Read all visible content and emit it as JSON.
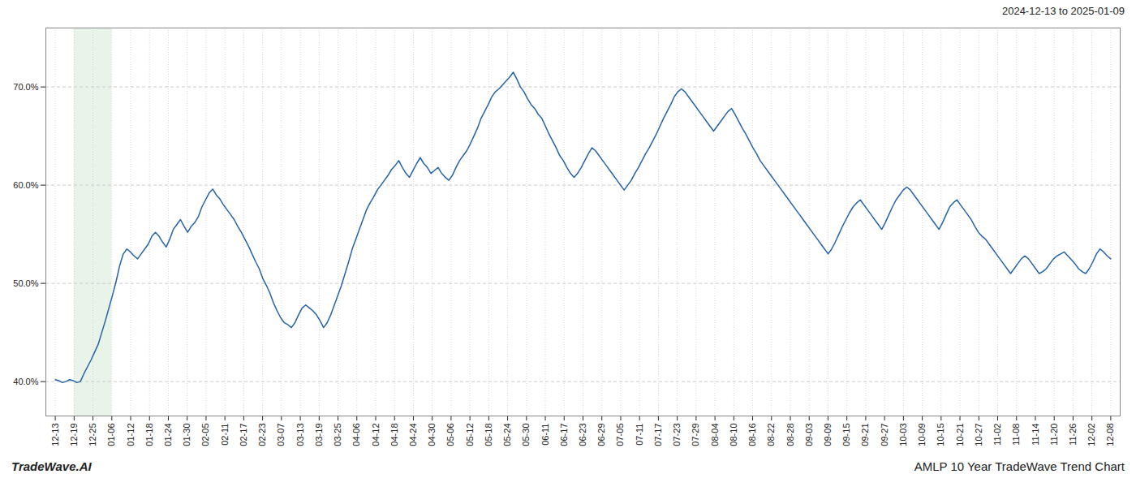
{
  "chart_data": {
    "type": "line",
    "title": "AMLP 10 Year TradeWave Trend Chart",
    "subtitle": "2024-12-13 to 2025-01-09",
    "annotations": [
      "TradeWave.AI"
    ],
    "color": "#2563a8",
    "grid": true,
    "xlim": [
      -0.5,
      56.5
    ],
    "xticks": [
      {
        "value": 0,
        "label": "12-13"
      },
      {
        "value": 1,
        "label": "12-19"
      },
      {
        "value": 2,
        "label": "12-25"
      },
      {
        "value": 3,
        "label": "01-06"
      },
      {
        "value": 4,
        "label": "01-12"
      },
      {
        "value": 5,
        "label": "01-18"
      },
      {
        "value": 6,
        "label": "01-24"
      },
      {
        "value": 7,
        "label": "01-30"
      },
      {
        "value": 8,
        "label": "02-05"
      },
      {
        "value": 9,
        "label": "02-11"
      },
      {
        "value": 10,
        "label": "02-17"
      },
      {
        "value": 11,
        "label": "02-23"
      },
      {
        "value": 12,
        "label": "03-07"
      },
      {
        "value": 13,
        "label": "03-13"
      },
      {
        "value": 14,
        "label": "03-19"
      },
      {
        "value": 15,
        "label": "03-25"
      },
      {
        "value": 16,
        "label": "04-06"
      },
      {
        "value": 17,
        "label": "04-12"
      },
      {
        "value": 18,
        "label": "04-18"
      },
      {
        "value": 19,
        "label": "04-24"
      },
      {
        "value": 20,
        "label": "04-30"
      },
      {
        "value": 21,
        "label": "05-06"
      },
      {
        "value": 22,
        "label": "05-12"
      },
      {
        "value": 23,
        "label": "05-18"
      },
      {
        "value": 24,
        "label": "05-24"
      },
      {
        "value": 25,
        "label": "05-30"
      },
      {
        "value": 26,
        "label": "06-11"
      },
      {
        "value": 27,
        "label": "06-17"
      },
      {
        "value": 28,
        "label": "06-23"
      },
      {
        "value": 29,
        "label": "06-29"
      },
      {
        "value": 30,
        "label": "07-05"
      },
      {
        "value": 31,
        "label": "07-11"
      },
      {
        "value": 32,
        "label": "07-17"
      },
      {
        "value": 33,
        "label": "07-23"
      },
      {
        "value": 34,
        "label": "07-29"
      },
      {
        "value": 35,
        "label": "08-04"
      },
      {
        "value": 36,
        "label": "08-10"
      },
      {
        "value": 37,
        "label": "08-16"
      },
      {
        "value": 38,
        "label": "08-22"
      },
      {
        "value": 39,
        "label": "08-28"
      },
      {
        "value": 40,
        "label": "09-03"
      },
      {
        "value": 41,
        "label": "09-09"
      },
      {
        "value": 42,
        "label": "09-15"
      },
      {
        "value": 43,
        "label": "09-21"
      },
      {
        "value": 44,
        "label": "09-27"
      },
      {
        "value": 45,
        "label": "10-03"
      },
      {
        "value": 46,
        "label": "10-09"
      },
      {
        "value": 47,
        "label": "10-15"
      },
      {
        "value": 48,
        "label": "10-21"
      },
      {
        "value": 49,
        "label": "10-27"
      },
      {
        "value": 50,
        "label": "11-02"
      },
      {
        "value": 51,
        "label": "11-08"
      },
      {
        "value": 52,
        "label": "11-14"
      },
      {
        "value": 53,
        "label": "11-20"
      },
      {
        "value": 54,
        "label": "11-26"
      },
      {
        "value": 55,
        "label": "12-02"
      },
      {
        "value": 56,
        "label": "12-08"
      }
    ],
    "ylim": [
      0.365,
      0.76
    ],
    "yticks": [
      {
        "value": 0.4,
        "label": "40.0%"
      },
      {
        "value": 0.5,
        "label": "50.0%"
      },
      {
        "value": 0.6,
        "label": "60.0%"
      },
      {
        "value": 0.7,
        "label": "70.0%"
      }
    ],
    "spans": [
      {
        "x": [
          1,
          3
        ],
        "color": "#d6ead7"
      }
    ],
    "values": [
      0.402,
      0.401,
      0.399,
      0.4,
      0.402,
      0.401,
      0.399,
      0.4,
      0.408,
      0.415,
      0.422,
      0.43,
      0.438,
      0.45,
      0.462,
      0.475,
      0.488,
      0.502,
      0.518,
      0.53,
      0.535,
      0.532,
      0.528,
      0.525,
      0.53,
      0.535,
      0.54,
      0.548,
      0.552,
      0.548,
      0.542,
      0.537,
      0.545,
      0.555,
      0.56,
      0.565,
      0.558,
      0.552,
      0.558,
      0.562,
      0.568,
      0.578,
      0.585,
      0.592,
      0.596,
      0.59,
      0.586,
      0.58,
      0.575,
      0.57,
      0.565,
      0.558,
      0.552,
      0.545,
      0.538,
      0.53,
      0.522,
      0.515,
      0.505,
      0.498,
      0.49,
      0.48,
      0.472,
      0.465,
      0.46,
      0.458,
      0.455,
      0.46,
      0.468,
      0.475,
      0.478,
      0.475,
      0.472,
      0.468,
      0.462,
      0.455,
      0.46,
      0.468,
      0.478,
      0.488,
      0.498,
      0.51,
      0.522,
      0.535,
      0.545,
      0.555,
      0.565,
      0.575,
      0.582,
      0.588,
      0.595,
      0.6,
      0.605,
      0.61,
      0.616,
      0.62,
      0.625,
      0.618,
      0.612,
      0.608,
      0.615,
      0.622,
      0.628,
      0.622,
      0.618,
      0.612,
      0.615,
      0.618,
      0.612,
      0.608,
      0.605,
      0.61,
      0.618,
      0.625,
      0.63,
      0.635,
      0.642,
      0.65,
      0.658,
      0.668,
      0.675,
      0.682,
      0.69,
      0.695,
      0.698,
      0.702,
      0.706,
      0.71,
      0.715,
      0.708,
      0.7,
      0.695,
      0.688,
      0.682,
      0.678,
      0.672,
      0.668,
      0.66,
      0.652,
      0.645,
      0.638,
      0.63,
      0.625,
      0.618,
      0.612,
      0.608,
      0.612,
      0.618,
      0.625,
      0.632,
      0.638,
      0.635,
      0.63,
      0.625,
      0.62,
      0.615,
      0.61,
      0.605,
      0.6,
      0.595,
      0.6,
      0.605,
      0.612,
      0.618,
      0.625,
      0.632,
      0.638,
      0.645,
      0.652,
      0.66,
      0.668,
      0.675,
      0.682,
      0.69,
      0.695,
      0.698,
      0.695,
      0.69,
      0.685,
      0.68,
      0.675,
      0.67,
      0.665,
      0.66,
      0.655,
      0.66,
      0.665,
      0.67,
      0.675,
      0.678,
      0.672,
      0.665,
      0.658,
      0.652,
      0.645,
      0.638,
      0.632,
      0.625,
      0.62,
      0.615,
      0.61,
      0.605,
      0.6,
      0.595,
      0.59,
      0.585,
      0.58,
      0.575,
      0.57,
      0.565,
      0.56,
      0.555,
      0.55,
      0.545,
      0.54,
      0.535,
      0.53,
      0.535,
      0.542,
      0.55,
      0.558,
      0.565,
      0.572,
      0.578,
      0.582,
      0.585,
      0.58,
      0.575,
      0.57,
      0.565,
      0.56,
      0.555,
      0.562,
      0.57,
      0.578,
      0.585,
      0.59,
      0.595,
      0.598,
      0.595,
      0.59,
      0.585,
      0.58,
      0.575,
      0.57,
      0.565,
      0.56,
      0.555,
      0.562,
      0.57,
      0.578,
      0.582,
      0.585,
      0.58,
      0.575,
      0.57,
      0.565,
      0.558,
      0.552,
      0.548,
      0.545,
      0.54,
      0.535,
      0.53,
      0.525,
      0.52,
      0.515,
      0.51,
      0.515,
      0.52,
      0.525,
      0.528,
      0.525,
      0.52,
      0.515,
      0.51,
      0.512,
      0.515,
      0.52,
      0.525,
      0.528,
      0.53,
      0.532,
      0.528,
      0.524,
      0.52,
      0.515,
      0.512,
      0.51,
      0.515,
      0.522,
      0.53,
      0.535,
      0.532,
      0.528,
      0.525
    ]
  }
}
